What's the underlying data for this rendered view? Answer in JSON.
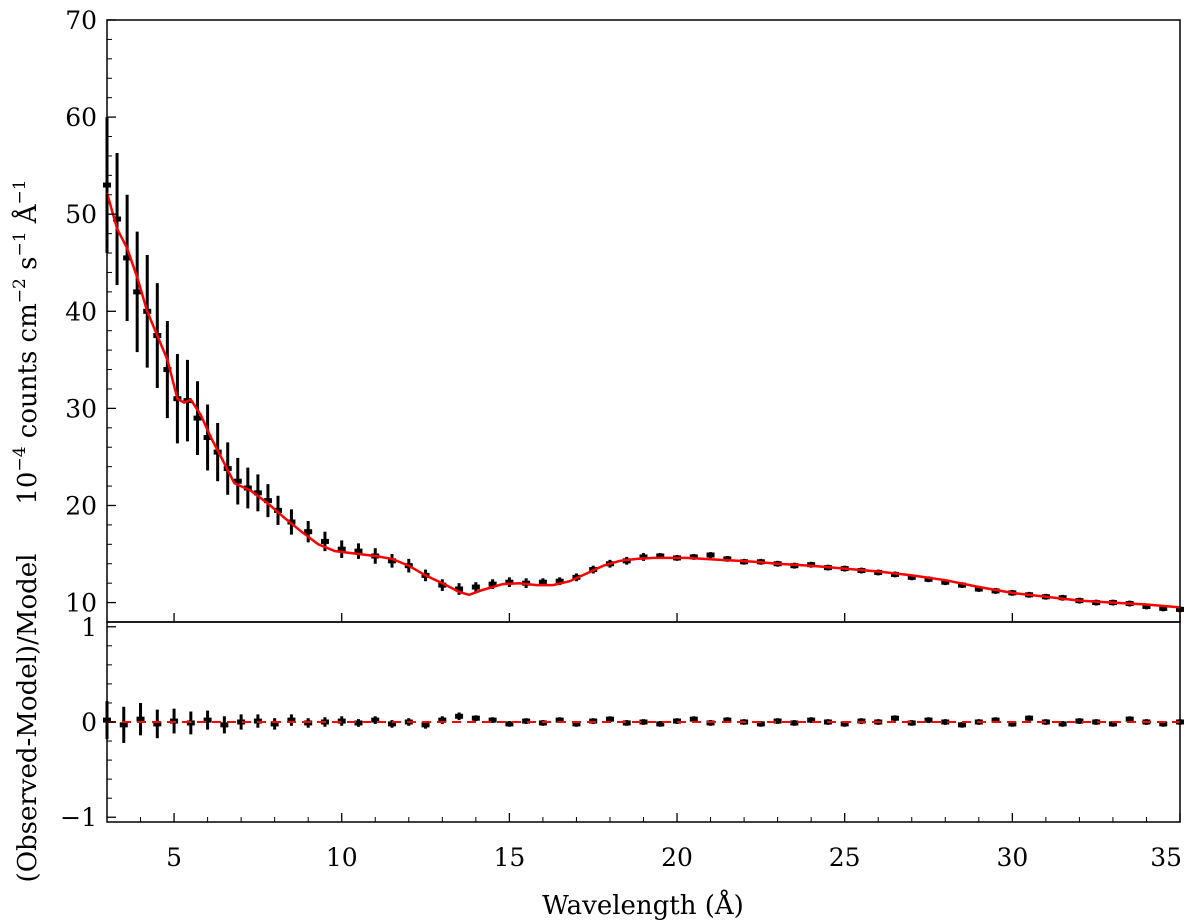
{
  "chart_data": [
    {
      "type": "scatter",
      "panel": "spectrum",
      "title": "",
      "xlabel": "",
      "ylabel": "10⁻⁴ counts cm⁻² s⁻¹ Å⁻¹",
      "ylabel_parts": {
        "base": "10",
        "e1": "−4",
        "t1": " counts cm",
        "e2": "−2",
        "t2": " s",
        "e3": "−1",
        "t3": " Å",
        "e4": "−1"
      },
      "xlim": [
        3,
        35
      ],
      "ylim": [
        8,
        70
      ],
      "xticks": [
        5,
        10,
        15,
        20,
        25,
        30,
        35
      ],
      "yticks": [
        10,
        20,
        30,
        40,
        50,
        60,
        70
      ],
      "ytick_labels": [
        "10",
        "20",
        "30",
        "40",
        "50",
        "60",
        "70"
      ],
      "grid": false,
      "series": [
        {
          "role": "observed",
          "color": "#000000",
          "x": [
            3.0,
            3.3,
            3.6,
            3.9,
            4.2,
            4.5,
            4.8,
            5.1,
            5.4,
            5.7,
            6.0,
            6.3,
            6.6,
            6.9,
            7.2,
            7.5,
            7.8,
            8.1,
            8.5,
            9.0,
            9.5,
            10.0,
            10.5,
            11.0,
            11.5,
            12.0,
            12.5,
            13.0,
            13.5,
            14.0,
            14.5,
            15.0,
            15.5,
            16.0,
            16.5,
            17.0,
            17.5,
            18.0,
            18.5,
            19.0,
            19.5,
            20.0,
            20.5,
            21.0,
            21.5,
            22.0,
            22.5,
            23.0,
            23.5,
            24.0,
            24.5,
            25.0,
            25.5,
            26.0,
            26.5,
            27.0,
            27.5,
            28.0,
            28.5,
            29.0,
            29.5,
            30.0,
            30.5,
            31.0,
            31.5,
            32.0,
            32.5,
            33.0,
            33.5,
            34.0,
            34.5,
            35.0
          ],
          "y": [
            53.0,
            49.5,
            45.5,
            42.0,
            40.0,
            37.5,
            34.0,
            31.0,
            30.8,
            29.0,
            27.0,
            25.5,
            23.8,
            22.5,
            21.8,
            21.3,
            20.5,
            19.5,
            18.3,
            17.3,
            16.3,
            15.5,
            15.3,
            14.8,
            14.3,
            13.8,
            12.8,
            11.8,
            11.4,
            11.6,
            11.9,
            12.1,
            12.0,
            12.1,
            12.2,
            12.6,
            13.4,
            14.0,
            14.3,
            14.7,
            14.8,
            14.6,
            14.7,
            14.9,
            14.5,
            14.2,
            14.2,
            14.0,
            13.8,
            13.9,
            13.6,
            13.5,
            13.3,
            13.1,
            12.9,
            12.6,
            12.4,
            12.1,
            11.8,
            11.4,
            11.2,
            11.0,
            10.8,
            10.6,
            10.5,
            10.2,
            10.0,
            10.0,
            9.9,
            9.6,
            9.4,
            9.3
          ],
          "yerr": [
            7.0,
            6.8,
            6.5,
            6.2,
            5.8,
            5.4,
            5.0,
            4.6,
            4.2,
            3.8,
            3.4,
            3.0,
            2.7,
            2.4,
            2.1,
            1.9,
            1.7,
            1.5,
            1.3,
            1.1,
            1.0,
            0.9,
            0.8,
            0.8,
            0.7,
            0.7,
            0.6,
            0.6,
            0.6,
            0.5,
            0.5,
            0.5,
            0.5,
            0.4,
            0.4,
            0.4,
            0.4,
            0.4,
            0.4,
            0.4,
            0.3,
            0.3,
            0.3,
            0.3,
            0.3,
            0.3,
            0.3,
            0.3,
            0.3,
            0.3,
            0.3,
            0.3,
            0.3,
            0.3,
            0.3,
            0.3,
            0.3,
            0.3,
            0.3,
            0.3,
            0.3,
            0.3,
            0.3,
            0.3,
            0.3,
            0.3,
            0.3,
            0.3,
            0.3,
            0.3,
            0.3,
            0.3
          ]
        },
        {
          "role": "model",
          "color": "#ff0000",
          "x": [
            3.0,
            3.3,
            3.6,
            3.9,
            4.2,
            4.5,
            4.8,
            5.1,
            5.3,
            5.5,
            5.8,
            6.1,
            6.4,
            6.8,
            7.3,
            7.8,
            8.3,
            8.8,
            9.3,
            9.8,
            10.5,
            11.0,
            11.5,
            12.0,
            12.5,
            13.0,
            13.5,
            13.8,
            14.2,
            14.8,
            15.3,
            15.8,
            16.3,
            16.8,
            17.3,
            17.8,
            18.3,
            18.8,
            19.3,
            19.8,
            20.3,
            20.8,
            21.3,
            21.8,
            22.3,
            23.0,
            24.0,
            25.0,
            26.0,
            27.0,
            28.0,
            29.0,
            30.0,
            31.0,
            32.0,
            32.5,
            33.0,
            34.0,
            35.0
          ],
          "y": [
            52.2,
            48.5,
            46.5,
            43.5,
            40.0,
            37.5,
            35.0,
            31.0,
            30.6,
            30.9,
            29.3,
            27.0,
            25.0,
            22.3,
            21.5,
            20.2,
            18.7,
            17.3,
            16.0,
            15.3,
            15.0,
            14.8,
            14.5,
            13.8,
            12.8,
            12.0,
            11.1,
            10.8,
            11.3,
            11.9,
            12.0,
            11.8,
            11.8,
            12.2,
            13.0,
            13.8,
            14.3,
            14.5,
            14.6,
            14.6,
            14.6,
            14.5,
            14.4,
            14.3,
            14.2,
            14.0,
            13.8,
            13.5,
            13.2,
            12.8,
            12.3,
            11.6,
            11.0,
            10.6,
            10.2,
            10.1,
            10.0,
            9.8,
            9.5
          ]
        }
      ]
    },
    {
      "type": "scatter",
      "panel": "residuals",
      "title": "",
      "xlabel": "Wavelength (Å)",
      "ylabel": "(Observed-Model)/Model",
      "xlim": [
        3,
        35
      ],
      "ylim": [
        -1.05,
        1.05
      ],
      "xticks": [
        5,
        10,
        15,
        20,
        25,
        30,
        35
      ],
      "xtick_labels": [
        "5",
        "10",
        "15",
        "20",
        "25",
        "30",
        "35"
      ],
      "yticks": [
        -1,
        0,
        1
      ],
      "ytick_labels": [
        "−1",
        "0",
        "1"
      ],
      "grid": false,
      "reference_line": {
        "y": 0,
        "color": "#ff0000",
        "style": "dashed"
      },
      "series": [
        {
          "role": "residual",
          "color": "#000000",
          "x": [
            3.0,
            3.5,
            4.0,
            4.5,
            5.0,
            5.5,
            6.0,
            6.5,
            7.0,
            7.5,
            8.0,
            8.5,
            9.0,
            9.5,
            10.0,
            10.5,
            11.0,
            11.5,
            12.0,
            12.5,
            13.0,
            13.5,
            14.0,
            14.5,
            15.0,
            15.5,
            16.0,
            16.5,
            17.0,
            17.5,
            18.0,
            18.5,
            19.0,
            19.5,
            20.0,
            20.5,
            21.0,
            21.5,
            22.0,
            22.5,
            23.0,
            23.5,
            24.0,
            24.5,
            25.0,
            25.5,
            26.0,
            26.5,
            27.0,
            27.5,
            28.0,
            28.5,
            29.0,
            29.5,
            30.0,
            30.5,
            31.0,
            31.5,
            32.0,
            32.5,
            33.0,
            33.5,
            34.0,
            34.5,
            35.0
          ],
          "y": [
            0.02,
            -0.03,
            0.03,
            -0.02,
            0.01,
            -0.01,
            0.02,
            -0.03,
            0.0,
            0.01,
            -0.02,
            0.02,
            -0.01,
            0.0,
            0.01,
            -0.01,
            0.02,
            -0.02,
            0.0,
            -0.03,
            0.02,
            0.06,
            0.04,
            0.02,
            -0.02,
            0.01,
            -0.01,
            0.02,
            -0.02,
            0.01,
            0.03,
            -0.01,
            0.0,
            -0.02,
            0.01,
            0.03,
            -0.01,
            0.02,
            0.0,
            -0.02,
            0.01,
            -0.01,
            0.02,
            0.0,
            -0.02,
            0.01,
            0.0,
            0.04,
            -0.01,
            0.02,
            0.0,
            -0.03,
            0.0,
            0.02,
            -0.02,
            0.04,
            0.0,
            -0.02,
            0.01,
            0.0,
            -0.02,
            0.03,
            0.0,
            -0.02,
            0.0
          ],
          "yerr": [
            0.2,
            0.19,
            0.17,
            0.15,
            0.13,
            0.12,
            0.1,
            0.09,
            0.08,
            0.07,
            0.06,
            0.06,
            0.05,
            0.05,
            0.05,
            0.04,
            0.04,
            0.04,
            0.04,
            0.04,
            0.04,
            0.04,
            0.03,
            0.03,
            0.03,
            0.03,
            0.03,
            0.03,
            0.03,
            0.03,
            0.03,
            0.03,
            0.03,
            0.03,
            0.03,
            0.03,
            0.03,
            0.03,
            0.03,
            0.03,
            0.03,
            0.03,
            0.03,
            0.03,
            0.03,
            0.03,
            0.03,
            0.03,
            0.03,
            0.03,
            0.03,
            0.03,
            0.03,
            0.03,
            0.03,
            0.03,
            0.03,
            0.03,
            0.03,
            0.03,
            0.03,
            0.03,
            0.03,
            0.03,
            0.03
          ]
        }
      ]
    }
  ]
}
